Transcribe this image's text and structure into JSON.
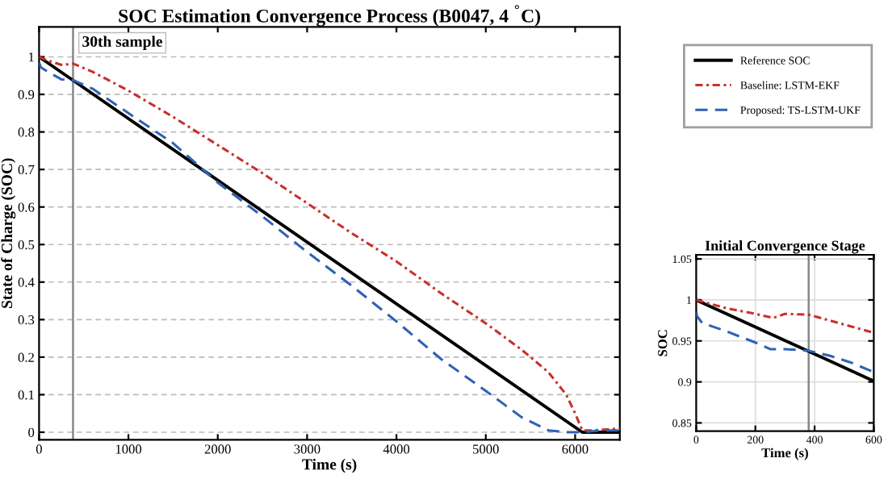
{
  "chart_data": [
    {
      "type": "line",
      "title": "SOC Estimation Convergence Process (B0047, 4 $^{°}$C)",
      "xlabel": "Time (s)",
      "ylabel": "State of Charge (SOC)",
      "xlim": [
        0,
        6500
      ],
      "xticks": [
        0,
        1000,
        2000,
        3000,
        4000,
        5000,
        6000
      ],
      "ylim": [
        -0.02,
        1.08
      ],
      "yticks": [
        0,
        0.1,
        0.2,
        0.3,
        0.4,
        0.5,
        0.6,
        0.7,
        0.8,
        0.9,
        1
      ],
      "grid": "y",
      "legend": "right",
      "ref_lines": [
        {
          "axis": "x",
          "value": 380,
          "label": "30th sample",
          "color": "#888888",
          "line_style": "solid"
        }
      ],
      "series": [
        {
          "name": "Reference SOC",
          "color": "#000000",
          "line_style": "solid",
          "x": [
            0,
            6080,
            6500
          ],
          "values": [
            1,
            0,
            0
          ]
        },
        {
          "name": "Baseline: LSTM-EKF",
          "color": "#c8302c",
          "line_style": "dashdot",
          "x": [
            0,
            100,
            260,
            380,
            600,
            1000,
            1500,
            2000,
            2500,
            3000,
            3500,
            4000,
            4500,
            5000,
            5400,
            5700,
            5900,
            6000,
            6080,
            6200,
            6500
          ],
          "values": [
            1,
            0.99,
            0.978,
            0.982,
            0.96,
            0.91,
            0.84,
            0.765,
            0.69,
            0.61,
            0.53,
            0.455,
            0.37,
            0.29,
            0.22,
            0.16,
            0.1,
            0.05,
            0.005,
            0.005,
            0.01
          ]
        },
        {
          "name": "Proposed: TS-LSTM-UKF",
          "color": "#2f62b5",
          "line_style": "dashed",
          "x": [
            0,
            20,
            100,
            250,
            380,
            600,
            1000,
            1500,
            2000,
            2500,
            3000,
            3500,
            4000,
            4500,
            5000,
            5400,
            5700,
            5900,
            6080,
            6300,
            6500
          ],
          "values": [
            0.985,
            0.972,
            0.96,
            0.94,
            0.938,
            0.915,
            0.85,
            0.77,
            0.665,
            0.575,
            0.48,
            0.39,
            0.295,
            0.195,
            0.11,
            0.04,
            0.005,
            0,
            0,
            0.005,
            0.005
          ]
        }
      ]
    },
    {
      "type": "line",
      "title": "Initial Convergence Stage",
      "xlabel": "Time (s)",
      "ylabel": "SOC",
      "xlim": [
        0,
        600
      ],
      "xticks": [
        0,
        200,
        400,
        600
      ],
      "ylim": [
        0.84,
        1.055
      ],
      "yticks": [
        0.85,
        0.9,
        0.95,
        1,
        1.05
      ],
      "grid": true,
      "ref_lines": [
        {
          "axis": "x",
          "value": 380,
          "color": "#888888",
          "line_style": "solid"
        }
      ],
      "series": [
        {
          "color": "#000000",
          "line_style": "solid",
          "x": [
            0,
            600
          ],
          "values": [
            1,
            0.901
          ]
        },
        {
          "color": "#c8302c",
          "line_style": "dashdot",
          "x": [
            0,
            100,
            200,
            260,
            300,
            380,
            450,
            520,
            600
          ],
          "values": [
            1,
            0.99,
            0.983,
            0.978,
            0.983,
            0.982,
            0.975,
            0.968,
            0.96
          ]
        },
        {
          "color": "#2f62b5",
          "line_style": "dashed",
          "x": [
            0,
            3,
            20,
            100,
            200,
            250,
            300,
            380,
            450,
            520,
            600
          ],
          "values": [
            0.985,
            0.98,
            0.972,
            0.962,
            0.948,
            0.94,
            0.94,
            0.938,
            0.932,
            0.924,
            0.912
          ]
        }
      ]
    }
  ]
}
